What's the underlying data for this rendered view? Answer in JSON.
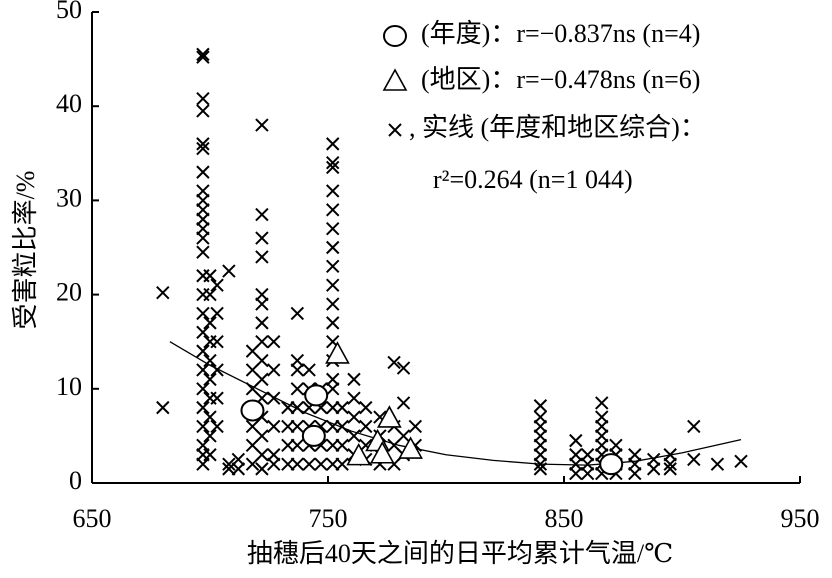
{
  "chart_data": {
    "type": "scatter",
    "x_label": "抽穗后40天之间的日平均累计气温/℃",
    "y_label": "受害粒比率/%",
    "xlim": [
      650,
      950
    ],
    "xticks": [
      650,
      750,
      850,
      950
    ],
    "ylim": [
      0,
      50
    ],
    "yticks": [
      0,
      10,
      20,
      30,
      40,
      50
    ],
    "grid": false,
    "legend_position": "upper right",
    "series": [
      {
        "name": "(年度)：r=−0.837ns (n=4)",
        "marker": "circle",
        "color": "#000000",
        "x": [
          718,
          745,
          744,
          870
        ],
        "values": [
          7.7,
          9.3,
          5.0,
          2.0
        ]
      },
      {
        "name": "(地区)：r=−0.478ns (n=6)",
        "marker": "triangle",
        "color": "#000000",
        "x": [
          754,
          776,
          771,
          763,
          785,
          773
        ],
        "values": [
          13.6,
          6.8,
          4.3,
          2.8,
          3.5,
          3.0
        ]
      },
      {
        "name": ", 实线 (年度和地区综合)：",
        "marker": "cross",
        "color": "#000000",
        "x": [
          680,
          680,
          697,
          697,
          697,
          697,
          697,
          697,
          697,
          697,
          697,
          697,
          697,
          697,
          697,
          697,
          697,
          697,
          697,
          697,
          697,
          697,
          697,
          697,
          697,
          697,
          697,
          697,
          700,
          700,
          700,
          700,
          700,
          700,
          700,
          700,
          700,
          700,
          703,
          703,
          703,
          703,
          703,
          703,
          708,
          708,
          708,
          712,
          712,
          718,
          718,
          718,
          718,
          718,
          718,
          718,
          722,
          722,
          722,
          722,
          722,
          722,
          722,
          722,
          722,
          722,
          722,
          722,
          722,
          722,
          722,
          727,
          727,
          727,
          727,
          727,
          727,
          733,
          733,
          733,
          733,
          737,
          737,
          737,
          737,
          737,
          737,
          737,
          737,
          742,
          742,
          742,
          742,
          742,
          742,
          747,
          747,
          747,
          747,
          747,
          752,
          752,
          752,
          752,
          752,
          752,
          752,
          752,
          752,
          752,
          752,
          752,
          752,
          752,
          752,
          752,
          752,
          752,
          752,
          756,
          756,
          756,
          756,
          761,
          761,
          761,
          761,
          761,
          766,
          766,
          766,
          766,
          772,
          772,
          772,
          772,
          778,
          778,
          778,
          778,
          782,
          782,
          782,
          782,
          787,
          787,
          840,
          840,
          840,
          840,
          840,
          840,
          840,
          840,
          855,
          855,
          855,
          855,
          860,
          860,
          860,
          866,
          866,
          866,
          866,
          866,
          866,
          866,
          866,
          872,
          872,
          872,
          872,
          880,
          880,
          880,
          888,
          888,
          895,
          895,
          895,
          905,
          905,
          915,
          925
        ],
        "values": [
          20.2,
          8,
          45.5,
          45.2,
          40.8,
          39.5,
          36,
          35.5,
          33,
          31,
          30,
          29,
          28,
          27,
          26,
          24.5,
          22,
          20,
          18,
          16,
          14,
          12,
          10,
          8,
          6,
          4,
          3,
          2,
          22,
          20,
          17,
          15,
          13,
          11,
          9,
          7,
          5,
          3,
          21,
          18,
          15,
          12,
          9,
          6,
          22.5,
          2,
          1.5,
          2.5,
          1.5,
          14,
          12,
          10,
          8,
          6,
          4,
          2,
          38,
          28.5,
          26,
          24,
          20,
          19,
          17,
          15,
          13,
          11,
          9,
          7,
          5,
          3,
          1.5,
          15,
          12,
          9,
          6,
          3,
          2,
          8,
          6,
          4,
          2,
          18,
          13,
          12,
          10,
          8,
          6,
          4,
          2,
          12,
          10,
          8,
          6,
          4,
          2,
          10,
          8,
          6,
          4,
          2,
          36,
          34,
          33.5,
          31,
          29,
          27,
          25,
          23,
          21,
          19,
          17,
          15,
          13,
          11,
          10,
          8,
          6,
          4,
          2,
          8,
          6,
          4,
          2,
          11,
          9,
          7,
          5,
          3,
          8,
          6,
          4,
          2.5,
          7,
          5,
          3,
          2,
          12.8,
          6,
          4,
          2,
          12.2,
          8.5,
          5,
          3,
          6,
          4,
          8.2,
          7,
          6,
          5,
          4,
          3,
          2,
          1.5,
          4.5,
          3,
          2,
          1,
          3,
          2,
          1,
          8.5,
          7,
          6,
          5,
          4,
          3,
          2,
          1,
          4,
          3,
          2,
          1,
          3,
          2,
          1,
          2.5,
          1.5,
          3,
          2,
          1.5,
          6,
          2.5,
          2,
          2.3
        ],
        "fit": {
          "label": "r²=0.264 (n=1 044)",
          "x": [
            683,
            700,
            720,
            740,
            760,
            780,
            800,
            820,
            840,
            860,
            880,
            900,
            925
          ],
          "values": [
            15,
            12.5,
            10,
            7.5,
            5.5,
            4,
            3,
            2.4,
            2,
            1.9,
            2.3,
            3.2,
            4.6
          ]
        }
      }
    ]
  }
}
